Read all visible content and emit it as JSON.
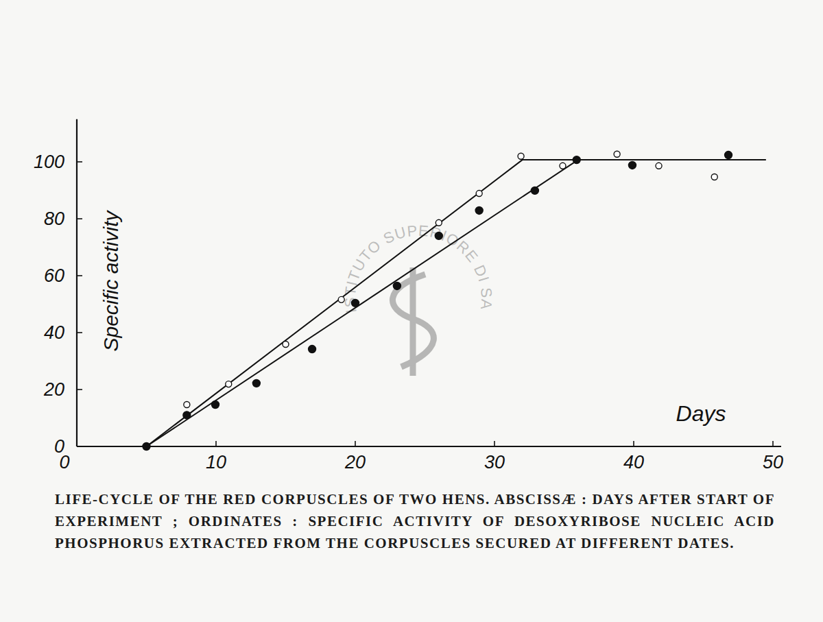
{
  "chart_data": {
    "type": "scatter",
    "title": "LIFE-CYCLE OF THE RED CORPUSCLES OF TWO HENS. ABSCISSÆ : DAYS AFTER START OF EXPERIMENT ; ORDINATES : SPECIFIC ACTIVITY OF DESOXYRIBOSE NUCLEIC ACID PHOSPHORUS EXTRACTED FROM THE CORPUSCLES SECURED AT DIFFERENT DATES.",
    "x_label": "Days",
    "y_label": "Specific activity",
    "annotations": [
      "ISTITUTO SUPERIORE DI SANITA"
    ],
    "xlim": [
      0,
      50
    ],
    "ylim": [
      0,
      115
    ],
    "xticks": [
      0,
      10,
      20,
      30,
      40,
      50
    ],
    "yticks": [
      0,
      20,
      40,
      60,
      80,
      100
    ],
    "grid": false,
    "series": [
      {
        "type": "scatter",
        "marker": "open",
        "color": "#111111",
        "x": [
          5,
          7.9,
          10.9,
          15,
          19,
          26,
          28.9,
          31.9,
          34.9,
          38.8,
          41.8,
          45.8
        ],
        "values": [
          0,
          14.7,
          21.9,
          35.9,
          51.6,
          78.6,
          88.9,
          102,
          98.6,
          102.7,
          98.6,
          94.7
        ]
      },
      {
        "type": "scatter",
        "marker": "filled",
        "color": "#111111",
        "x": [
          5,
          7.9,
          9.95,
          12.9,
          16.9,
          20,
          23,
          26,
          28.9,
          32.9,
          35.9,
          39.9,
          46.8
        ],
        "values": [
          0,
          11,
          14.7,
          22.2,
          34.2,
          50.4,
          56.4,
          74,
          82.9,
          89.9,
          100.7,
          98.8,
          102.4
        ]
      },
      {
        "type": "line",
        "marker": "none",
        "line_style": "solid",
        "color": "#111111",
        "x": [
          5,
          32,
          49.5
        ],
        "values": [
          0,
          100.7,
          100.7
        ]
      },
      {
        "type": "line",
        "marker": "none",
        "line_style": "solid",
        "color": "#111111",
        "x": [
          5,
          36
        ],
        "values": [
          0,
          100.7
        ]
      }
    ]
  }
}
